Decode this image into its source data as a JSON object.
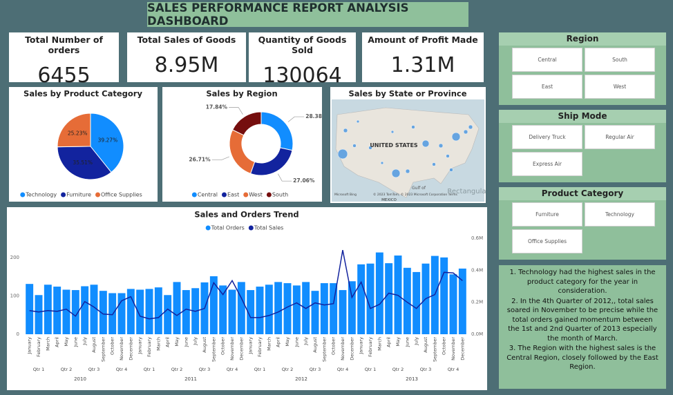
{
  "title": "SALES PERFORMANCE REPORT ANALYSIS DASHBOARD",
  "kpis": [
    {
      "label": "Total Number of orders",
      "value": 6455
    },
    {
      "label": "Total Sales of Goods",
      "value": "8.95M"
    },
    {
      "label": "Quantity of Goods Sold",
      "value": 130064
    },
    {
      "label": "Amount of Profit Made",
      "value": "1.31M"
    }
  ],
  "chart_data": [
    {
      "type": "pie",
      "title": "Sales by Product Category",
      "categories": [
        "Technology",
        "Furniture",
        "Office Supplies"
      ],
      "values": [
        39.27,
        35.51,
        25.23
      ],
      "value_labels": [
        "39.27%",
        "35.51%",
        "25.23%"
      ],
      "colors": [
        "#118dff",
        "#12239e",
        "#e66c37"
      ]
    },
    {
      "type": "donut",
      "title": "Sales by Region",
      "categories": [
        "Central",
        "East",
        "West",
        "South"
      ],
      "values": [
        28.38,
        27.06,
        26.71,
        17.84
      ],
      "value_labels": [
        "28.38%",
        "27.06%",
        "26.71%",
        "17.84%"
      ],
      "colors": [
        "#118dff",
        "#12239e",
        "#e66c37",
        "#750e0e"
      ]
    },
    {
      "type": "combo",
      "title": "Sales and Orders Trend",
      "categories": [
        "January",
        "February",
        "March",
        "April",
        "May",
        "June",
        "July",
        "August",
        "September",
        "October",
        "November",
        "December",
        "January",
        "February",
        "March",
        "April",
        "May",
        "June",
        "July",
        "August",
        "September",
        "October",
        "November",
        "December",
        "January",
        "February",
        "March",
        "April",
        "May",
        "June",
        "July",
        "August",
        "September",
        "October",
        "November",
        "December",
        "January",
        "February",
        "March",
        "April",
        "May",
        "June",
        "July",
        "August",
        "September",
        "October",
        "November",
        "December"
      ],
      "quarters": [
        "Qtr 1",
        "Qtr 2",
        "Qtr 3",
        "Qtr 4",
        "Qtr 1",
        "Qtr 2",
        "Qtr 3",
        "Qtr 4",
        "Qtr 1",
        "Qtr 2",
        "Qtr 3",
        "Qtr 4",
        "Qtr 1",
        "Qtr 2",
        "Qtr 3",
        "Qtr 4"
      ],
      "years": [
        "2010",
        "2011",
        "2012",
        "2013"
      ],
      "series": [
        {
          "name": "Total Orders",
          "color": "#118dff",
          "mark": "bar",
          "values": [
            131,
            102,
            129,
            124,
            116,
            115,
            125,
            129,
            113,
            107,
            107,
            118,
            116,
            118,
            122,
            102,
            136,
            115,
            120,
            135,
            151,
            127,
            116,
            136,
            115,
            124,
            129,
            136,
            133,
            127,
            136,
            113,
            133,
            133,
            115,
            138,
            182,
            184,
            213,
            185,
            205,
            173,
            162,
            184,
            204,
            200,
            156,
            171
          ]
        },
        {
          "name": "Total Sales",
          "color": "#12239e",
          "mark": "line",
          "axis": "y2",
          "values": [
            148000,
            139000,
            148000,
            143000,
            157000,
            113000,
            204000,
            170000,
            126000,
            122000,
            209000,
            235000,
            113000,
            96000,
            104000,
            157000,
            117000,
            157000,
            143000,
            161000,
            322000,
            248000,
            335000,
            226000,
            104000,
            104000,
            117000,
            139000,
            170000,
            196000,
            161000,
            196000,
            183000,
            191000,
            526000,
            230000,
            326000,
            161000,
            187000,
            257000,
            243000,
            200000,
            161000,
            222000,
            248000,
            387000,
            383000,
            335000
          ]
        }
      ],
      "ylim": [
        0,
        250
      ],
      "yticks": [
        0,
        100,
        200
      ],
      "y2lim": [
        0,
        600000
      ],
      "y2ticks": [
        {
          "value": 0,
          "label": "0.0M"
        },
        {
          "value": 200000,
          "label": "0.2M"
        },
        {
          "value": 400000,
          "label": "0.4M"
        },
        {
          "value": 600000,
          "label": "0.6M"
        }
      ]
    }
  ],
  "map": {
    "title": "Sales by State or Province",
    "labels": [
      "UNITED STATES",
      "Gulf of",
      "MEXICO",
      "Microsoft Bing",
      "© 2023 TomTom, © 2023 Microsoft Corporation  Terms",
      "Rectangular Snip"
    ]
  },
  "slicers": [
    {
      "title": "Region",
      "items": [
        "Central",
        "South",
        "East",
        "West"
      ]
    },
    {
      "title": "Ship Mode",
      "items": [
        "Delivery Truck",
        "Regular Air",
        "Express Air"
      ]
    },
    {
      "title": "Product Category",
      "items": [
        "Furniture",
        "Technology",
        "Office Supplies"
      ]
    }
  ],
  "notes": [
    "1. Technology had the highest sales in the product category for the year in consideration.",
    "2. In the 4th Quarter of 2012,, total sales soared in November to be precise while the total orders gained momentum between the 1st and 2nd Quarter of 2013 especially the month of March.",
    "3. The Region with the highest sales is the Central Region, closely followed by the East Region."
  ]
}
